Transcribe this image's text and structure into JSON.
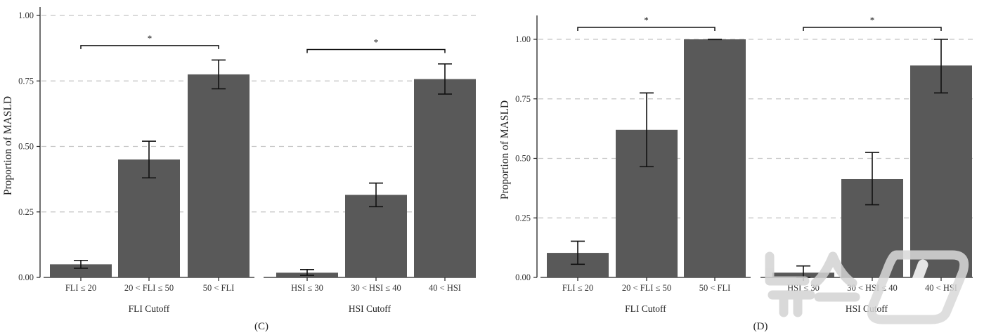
{
  "chart_data": [
    {
      "type": "bar",
      "panel_label": "(C)",
      "ylabel": "Proportion of MASLD",
      "ylim": [
        0,
        1
      ],
      "yticks": [
        "0.00",
        "0.25",
        "0.50",
        "0.75",
        "1.00"
      ],
      "grid": "horizontal dashed",
      "groups": [
        {
          "xlabel": "FLI Cutoff",
          "categories": [
            "FLI ≤ 20",
            "20 < FLI ≤ 50",
            "50 < FLI"
          ],
          "values": [
            0.05,
            0.45,
            0.775
          ],
          "error_low": [
            0.035,
            0.38,
            0.72
          ],
          "error_high": [
            0.065,
            0.52,
            0.83
          ],
          "significance": {
            "from": 0,
            "to": 2,
            "label": "*",
            "y": 0.885
          }
        },
        {
          "xlabel": "HSI Cutoff",
          "categories": [
            "HSI ≤ 30",
            "30 < HSI ≤ 40",
            "40 < HSI"
          ],
          "values": [
            0.018,
            0.315,
            0.757
          ],
          "error_low": [
            0.008,
            0.27,
            0.7
          ],
          "error_high": [
            0.03,
            0.36,
            0.815
          ],
          "significance": {
            "from": 0,
            "to": 2,
            "label": "*",
            "y": 0.87
          }
        }
      ]
    },
    {
      "type": "bar",
      "panel_label": "(D)",
      "ylabel": "Proportion of MASLD",
      "ylim": [
        0,
        1.1
      ],
      "yticks": [
        "0.00",
        "0.25",
        "0.50",
        "0.75",
        "1.00"
      ],
      "grid": "horizontal dashed",
      "groups": [
        {
          "xlabel": "FLI Cutoff",
          "categories": [
            "FLI ≤ 20",
            "20 < FLI ≤ 50",
            "50 < FLI"
          ],
          "values": [
            0.103,
            0.62,
            1.0
          ],
          "error_low": [
            0.055,
            0.465,
            0.999
          ],
          "error_high": [
            0.152,
            0.775,
            1.0
          ],
          "significance": {
            "from": 0,
            "to": 2,
            "label": "*",
            "y": 1.05
          }
        },
        {
          "xlabel": "HSI Cutoff",
          "categories": [
            "HSI ≤ 30",
            "30 < HSI ≤ 40",
            "40 < HSI"
          ],
          "values": [
            0.02,
            0.413,
            0.89
          ],
          "error_low": [
            0.0,
            0.305,
            0.775
          ],
          "error_high": [
            0.048,
            0.525,
            1.0
          ],
          "significance": {
            "from": 0,
            "to": 2,
            "label": "*",
            "y": 1.05
          }
        }
      ]
    }
  ],
  "colors": {
    "bar": "#595959",
    "grid": "#c4c4c4",
    "axis": "#222222",
    "watermark": "#cfcfcf"
  },
  "watermark_text": "뉴스1"
}
